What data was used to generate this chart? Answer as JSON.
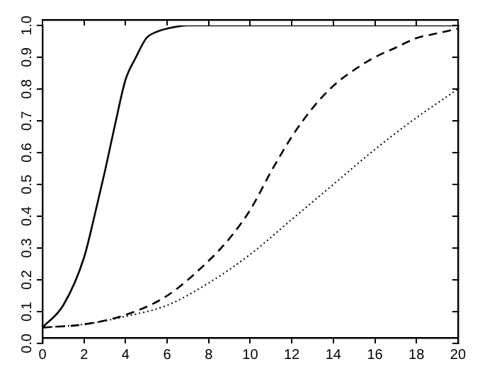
{
  "chart_data": {
    "type": "line",
    "x": [
      0,
      1,
      2,
      2.5,
      3,
      3.5,
      4,
      4.5,
      5,
      5.5,
      6,
      7,
      8,
      10,
      12,
      14,
      16,
      18,
      20
    ],
    "series": [
      {
        "color": "#000000",
        "line_style": "solid",
        "values": [
          0.05,
          0.12,
          0.27,
          0.4,
          0.54,
          0.69,
          0.83,
          0.9,
          0.96,
          0.98,
          0.99,
          1.0,
          1.0,
          1.0,
          1.0,
          1.0,
          1.0,
          1.0,
          1.0
        ]
      },
      {
        "color": "#000000",
        "line_style": "dashed",
        "x": [
          0,
          2,
          4,
          6,
          8,
          9,
          10,
          11,
          12,
          13,
          14,
          15,
          16,
          17,
          18,
          19,
          20
        ],
        "values": [
          0.05,
          0.06,
          0.09,
          0.15,
          0.26,
          0.33,
          0.42,
          0.54,
          0.65,
          0.74,
          0.81,
          0.86,
          0.9,
          0.93,
          0.96,
          0.975,
          0.99
        ]
      },
      {
        "color": "#000000",
        "line_style": "dotted",
        "x": [
          0,
          2,
          4,
          6,
          8,
          10,
          12,
          14,
          16,
          18,
          20
        ],
        "values": [
          0.05,
          0.06,
          0.085,
          0.12,
          0.19,
          0.28,
          0.39,
          0.5,
          0.61,
          0.71,
          0.8
        ]
      }
    ],
    "xlim": [
      0,
      20
    ],
    "xticks": [
      0,
      2,
      4,
      6,
      8,
      10,
      12,
      14,
      16,
      18,
      20
    ],
    "ylim": [
      0,
      1
    ],
    "yticks": [
      {
        "value": 0,
        "label": "0.0"
      },
      0.1,
      0.2,
      0.3,
      0.4,
      0.5,
      0.6,
      0.7,
      0.8,
      0.9,
      {
        "value": 1,
        "label": "1.0"
      }
    ],
    "grid": false,
    "legend": false,
    "marker": "none"
  }
}
